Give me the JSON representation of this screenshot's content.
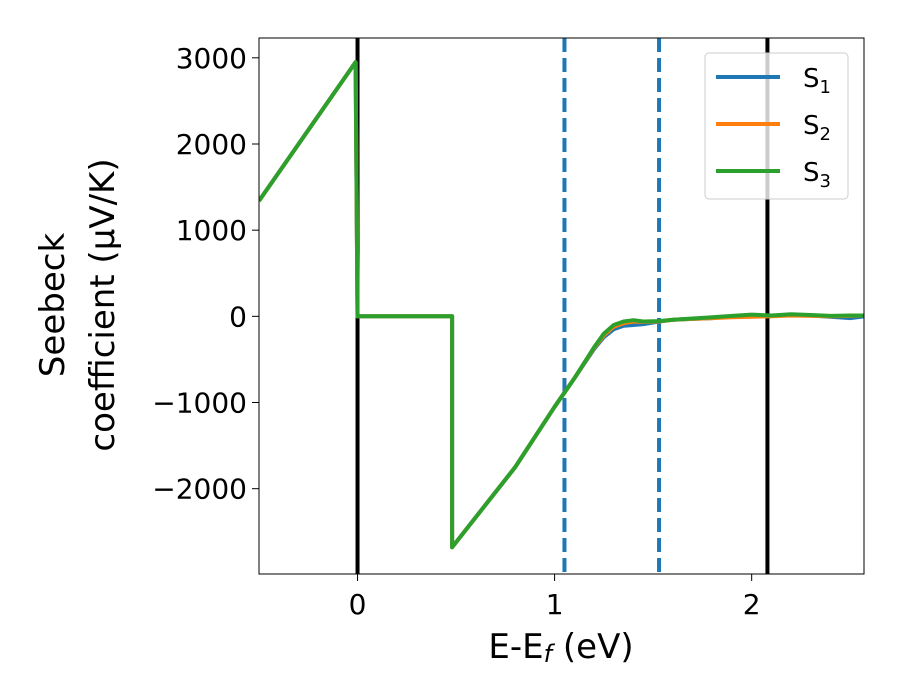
{
  "chart_data": {
    "type": "line",
    "xlabel": {
      "main": "E-E",
      "sub": "f",
      "tail": " (eV)"
    },
    "ylabel": {
      "line1": "Seebeck",
      "line2": "coefficient  (μV/K)"
    },
    "xlim": [
      -0.5,
      2.57
    ],
    "ylim": [
      -2990,
      3230
    ],
    "xticks": [
      0,
      1,
      2
    ],
    "xtick_labels": [
      "0",
      "1",
      "2"
    ],
    "yticks": [
      -2000,
      -1000,
      0,
      1000,
      2000,
      3000
    ],
    "ytick_labels": [
      "−2000",
      "−1000",
      "0",
      "1000",
      "2000",
      "3000"
    ],
    "grid": false,
    "legend_position": "top-right",
    "vlines": [
      {
        "x": 0.0,
        "style": "solid",
        "color": "#000000"
      },
      {
        "x": 2.08,
        "style": "solid",
        "color": "#000000"
      },
      {
        "x": 1.05,
        "style": "dashed",
        "color": "#1f77b4"
      },
      {
        "x": 1.53,
        "style": "dashed",
        "color": "#1f77b4"
      }
    ],
    "series": [
      {
        "name": "S",
        "sub": "1",
        "color": "#1f77b4",
        "points": [
          [
            -0.5,
            1340
          ],
          [
            -0.01,
            2950
          ],
          [
            0.0,
            0
          ],
          [
            0.48,
            0
          ],
          [
            0.48,
            -2680
          ],
          [
            0.8,
            -1750
          ],
          [
            1.0,
            -1050
          ],
          [
            1.1,
            -720
          ],
          [
            1.2,
            -380
          ],
          [
            1.25,
            -240
          ],
          [
            1.3,
            -150
          ],
          [
            1.35,
            -110
          ],
          [
            1.4,
            -100
          ],
          [
            1.45,
            -90
          ],
          [
            1.53,
            -60
          ],
          [
            1.6,
            -40
          ],
          [
            1.7,
            -30
          ],
          [
            1.8,
            -20
          ],
          [
            1.9,
            0
          ],
          [
            2.0,
            10
          ],
          [
            2.1,
            5
          ],
          [
            2.2,
            20
          ],
          [
            2.3,
            10
          ],
          [
            2.4,
            -5
          ],
          [
            2.5,
            -20
          ],
          [
            2.57,
            0
          ]
        ]
      },
      {
        "name": "S",
        "sub": "2",
        "color": "#ff7f0e",
        "points": [
          [
            -0.5,
            1340
          ],
          [
            -0.01,
            2950
          ],
          [
            0.0,
            0
          ],
          [
            0.48,
            0
          ],
          [
            0.48,
            -2680
          ],
          [
            0.8,
            -1750
          ],
          [
            1.0,
            -1050
          ],
          [
            1.1,
            -720
          ],
          [
            1.2,
            -370
          ],
          [
            1.25,
            -220
          ],
          [
            1.3,
            -120
          ],
          [
            1.35,
            -80
          ],
          [
            1.4,
            -60
          ],
          [
            1.45,
            -65
          ],
          [
            1.53,
            -60
          ],
          [
            1.6,
            -40
          ],
          [
            1.7,
            -30
          ],
          [
            1.8,
            -20
          ],
          [
            1.9,
            -10
          ],
          [
            2.0,
            -5
          ],
          [
            2.1,
            0
          ],
          [
            2.2,
            10
          ],
          [
            2.3,
            5
          ],
          [
            2.4,
            0
          ],
          [
            2.5,
            5
          ],
          [
            2.57,
            10
          ]
        ]
      },
      {
        "name": "S",
        "sub": "3",
        "color": "#2ca02c",
        "points": [
          [
            -0.5,
            1340
          ],
          [
            -0.01,
            2950
          ],
          [
            0.0,
            0
          ],
          [
            0.48,
            0
          ],
          [
            0.48,
            -2680
          ],
          [
            0.8,
            -1750
          ],
          [
            1.0,
            -1050
          ],
          [
            1.1,
            -720
          ],
          [
            1.2,
            -360
          ],
          [
            1.25,
            -200
          ],
          [
            1.3,
            -100
          ],
          [
            1.35,
            -60
          ],
          [
            1.4,
            -45
          ],
          [
            1.45,
            -60
          ],
          [
            1.53,
            -55
          ],
          [
            1.6,
            -40
          ],
          [
            1.7,
            -25
          ],
          [
            1.8,
            -10
          ],
          [
            1.9,
            5
          ],
          [
            2.0,
            20
          ],
          [
            2.1,
            10
          ],
          [
            2.2,
            25
          ],
          [
            2.3,
            15
          ],
          [
            2.4,
            5
          ],
          [
            2.5,
            10
          ],
          [
            2.57,
            10
          ]
        ]
      }
    ]
  }
}
